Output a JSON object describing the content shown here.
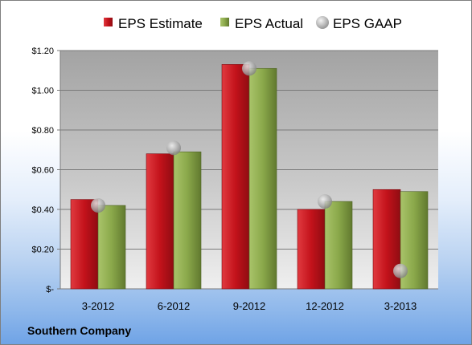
{
  "footer": {
    "company": "Southern Company"
  },
  "colors": {
    "estimate": "#c9141c",
    "actual": "#8dab4a",
    "gaap": "#a6a6a6"
  },
  "chart_data": {
    "type": "bar",
    "categories": [
      "3-2012",
      "6-2012",
      "9-2012",
      "12-2012",
      "3-2013"
    ],
    "series": [
      {
        "name": "EPS Estimate",
        "kind": "bar",
        "values": [
          0.45,
          0.68,
          1.13,
          0.4,
          0.5
        ]
      },
      {
        "name": "EPS Actual",
        "kind": "bar",
        "values": [
          0.42,
          0.69,
          1.11,
          0.44,
          0.49
        ]
      },
      {
        "name": "EPS GAAP",
        "kind": "marker",
        "values": [
          0.42,
          0.71,
          1.11,
          0.44,
          0.09
        ]
      }
    ],
    "ylim": [
      0,
      1.2
    ],
    "yticks": [
      {
        "value": 0,
        "label": "$-"
      },
      {
        "value": 0.2,
        "label": "$0.20"
      },
      {
        "value": 0.4,
        "label": "$0.40"
      },
      {
        "value": 0.6,
        "label": "$0.60"
      },
      {
        "value": 0.8,
        "label": "$0.80"
      },
      {
        "value": 1.0,
        "label": "$1.00"
      },
      {
        "value": 1.2,
        "label": "$1.20"
      }
    ],
    "grid": true,
    "legend": "top"
  }
}
